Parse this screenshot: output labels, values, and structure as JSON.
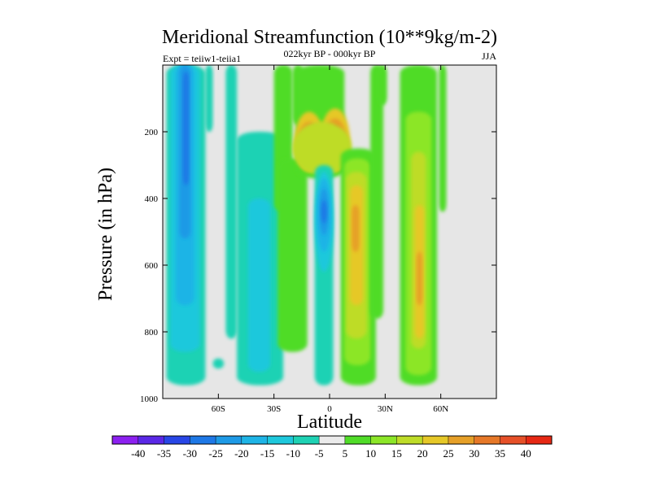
{
  "chart_data": {
    "type": "heatmap",
    "title": "Meridional Streamfunction (10**9kg/m-2)",
    "subtitle_left": "Expt = teiiw1-teiia1",
    "subtitle_center": "022kyr BP - 000kyr BP",
    "subtitle_right": "JJA",
    "xlabel": "Latitude",
    "ylabel": "Pressure (in hPa)",
    "x_range": [
      -90,
      90
    ],
    "y_range": [
      0,
      1000
    ],
    "y_reversed": true,
    "x_ticks": [
      {
        "value": -60,
        "label": "60S"
      },
      {
        "value": -30,
        "label": "30S"
      },
      {
        "value": 0,
        "label": "0"
      },
      {
        "value": 30,
        "label": "30N"
      },
      {
        "value": 60,
        "label": "60N"
      }
    ],
    "y_ticks": [
      {
        "value": 200,
        "label": "200"
      },
      {
        "value": 400,
        "label": "400"
      },
      {
        "value": 600,
        "label": "600"
      },
      {
        "value": 800,
        "label": "800"
      },
      {
        "value": 1000,
        "label": "1000"
      }
    ],
    "grid": false,
    "background_color": "#e6e6e6",
    "colorbar": {
      "placement": "bottom",
      "levels": [
        -40,
        -35,
        -30,
        -25,
        -20,
        -15,
        -10,
        -5,
        5,
        10,
        15,
        20,
        25,
        30,
        35,
        40
      ],
      "labels": [
        "-40",
        "-35",
        "-30",
        "-25",
        "-20",
        "-15",
        "-10",
        "-5",
        "5",
        "10",
        "15",
        "20",
        "25",
        "30",
        "35",
        "40"
      ],
      "colors": [
        "#8c20f0",
        "#5a28e6",
        "#2846e6",
        "#1e78e6",
        "#1e9ae6",
        "#1eb4e6",
        "#1ec8dc",
        "#1ed2b4",
        "#ebebeb",
        "#50dc28",
        "#8ce628",
        "#bedc28",
        "#e6c828",
        "#e6a028",
        "#e67828",
        "#e65028",
        "#e62814"
      ]
    },
    "features": [
      {
        "kind": "min",
        "lat": -72,
        "p": 300,
        "value": -30,
        "label": "southern high-latitude negative cell"
      },
      {
        "kind": "min",
        "lat": -2,
        "p": 450,
        "value": -30,
        "label": "equatorial negative core"
      },
      {
        "kind": "max",
        "lat": -10,
        "p": 230,
        "value": 35,
        "label": "upper-level positive core south"
      },
      {
        "kind": "max",
        "lat": 3,
        "p": 220,
        "value": 35,
        "label": "upper-level positive core north"
      },
      {
        "kind": "max",
        "lat": 15,
        "p": 550,
        "value": 25,
        "label": "northern tropical positive cell"
      },
      {
        "kind": "max",
        "lat": 52,
        "p": 700,
        "value": 25,
        "label": "northern mid-latitude positive cell"
      }
    ]
  }
}
